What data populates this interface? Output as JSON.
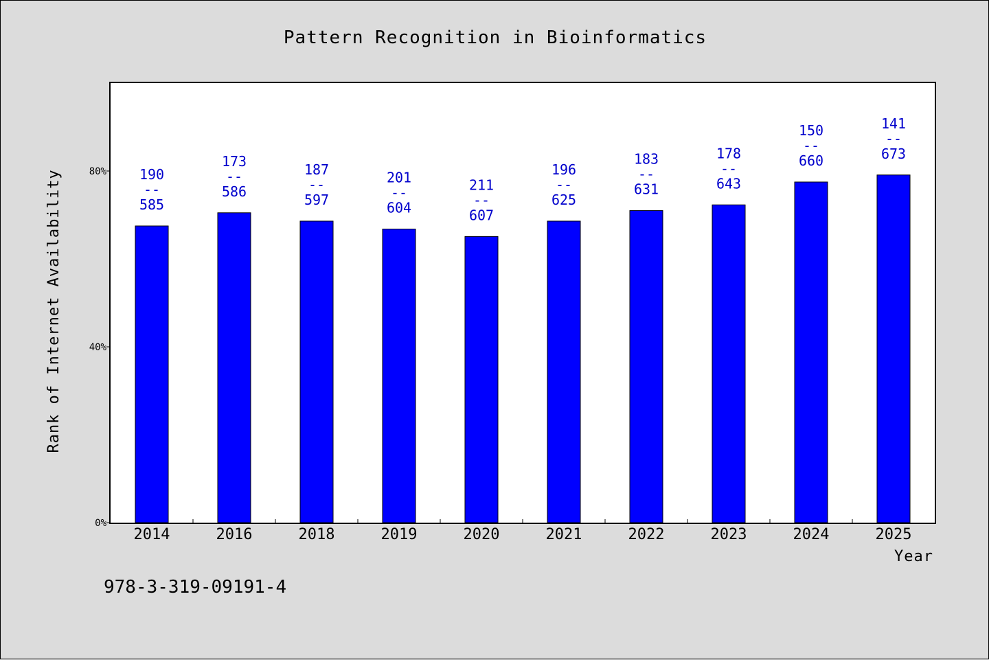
{
  "chart_data": {
    "type": "bar",
    "title": "Pattern Recognition in Bioinformatics",
    "xlabel": "Year",
    "ylabel": "Rank of Internet Availability",
    "ylim": [
      0,
      100
    ],
    "yticks": [
      {
        "value": 0,
        "label": "0%"
      },
      {
        "value": 40,
        "label": "40%"
      },
      {
        "value": 80,
        "label": "80%"
      }
    ],
    "categories": [
      "2014",
      "2016",
      "2018",
      "2019",
      "2020",
      "2021",
      "2022",
      "2023",
      "2024",
      "2025"
    ],
    "values": [
      67.5,
      70.5,
      68.6,
      66.8,
      65.1,
      68.6,
      71.0,
      72.3,
      77.5,
      79.1
    ],
    "bar_labels": [
      {
        "top": "190",
        "sep": "--",
        "bottom": "585"
      },
      {
        "top": "173",
        "sep": "--",
        "bottom": "586"
      },
      {
        "top": "187",
        "sep": "--",
        "bottom": "597"
      },
      {
        "top": "201",
        "sep": "--",
        "bottom": "604"
      },
      {
        "top": "211",
        "sep": "--",
        "bottom": "607"
      },
      {
        "top": "196",
        "sep": "--",
        "bottom": "625"
      },
      {
        "top": "183",
        "sep": "--",
        "bottom": "631"
      },
      {
        "top": "178",
        "sep": "--",
        "bottom": "643"
      },
      {
        "top": "150",
        "sep": "--",
        "bottom": "660"
      },
      {
        "top": "141",
        "sep": "--",
        "bottom": "673"
      }
    ],
    "bar_color": "#0000ff",
    "label_color": "#0000cc",
    "grid": false,
    "legend": "none"
  },
  "footer": {
    "isbn": "978-3-319-09191-4"
  }
}
